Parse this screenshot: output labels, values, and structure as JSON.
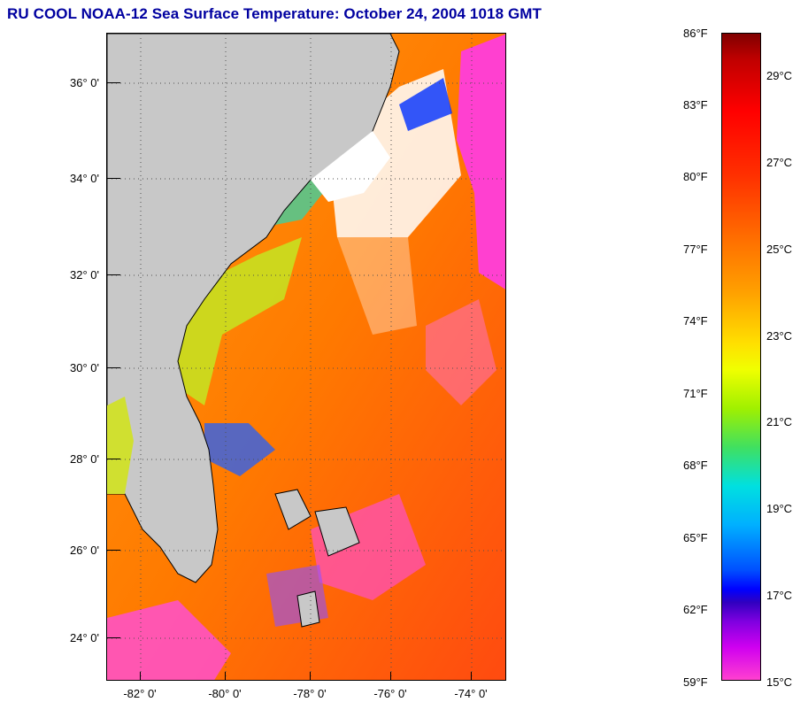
{
  "title": "RU COOL  NOAA-12  Sea Surface Temperature:  October 24, 2004 1018 GMT",
  "latitude_labels": [
    "36° 0'",
    "34° 0'",
    "32° 0'",
    "30° 0'",
    "28° 0'",
    "26° 0'",
    "24° 0'"
  ],
  "longitude_labels": [
    "-82° 0'",
    "-80° 0'",
    "-78° 0'",
    "-76° 0'",
    "-74° 0'"
  ],
  "colorbar": {
    "fahrenheit_labels": [
      "86°F",
      "83°F",
      "80°F",
      "77°F",
      "74°F",
      "71°F",
      "68°F",
      "65°F",
      "62°F",
      "59°F"
    ],
    "celsius_labels": [
      "29°C",
      "27°C",
      "25°C",
      "23°C",
      "21°C",
      "19°C",
      "17°C",
      "15°C"
    ]
  },
  "colors": {
    "title": "#0000a0",
    "land": "#c8c8c8",
    "warm_water": "#ff6a00",
    "cold_water": "#ff40d0",
    "clouds": "#ffffff"
  }
}
